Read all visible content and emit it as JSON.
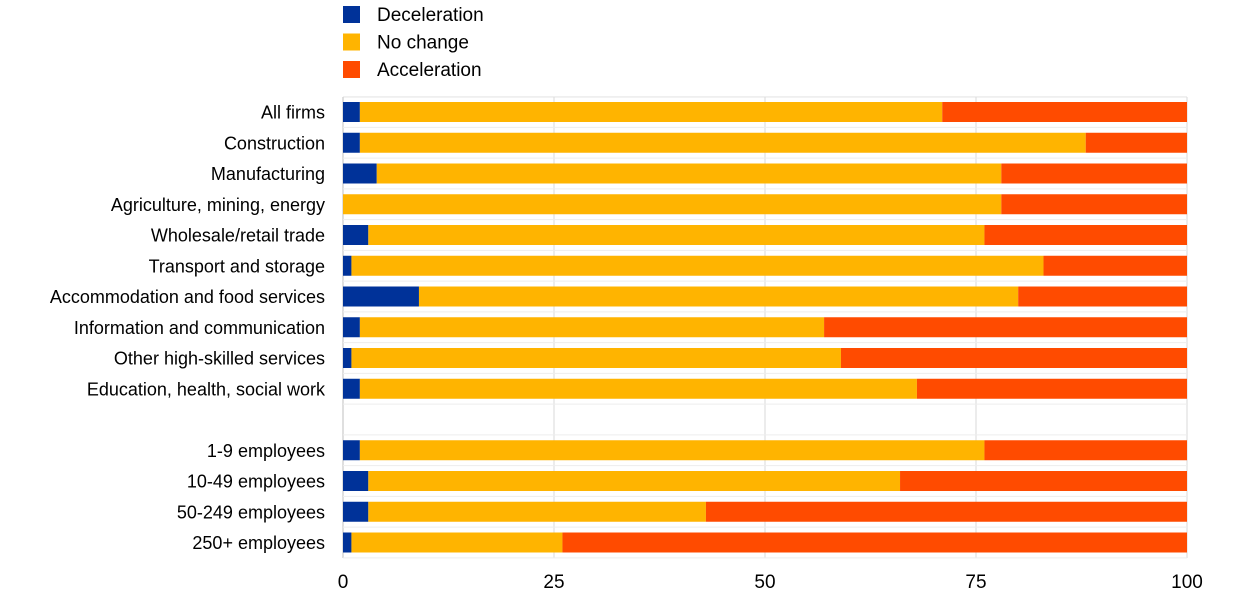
{
  "chart_data": {
    "type": "bar",
    "orientation": "horizontal",
    "stacked": true,
    "title": "",
    "xlabel": "",
    "ylabel": "",
    "xlim": [
      0,
      100
    ],
    "xticks": [
      "0",
      "25",
      "50",
      "75",
      "100"
    ],
    "grid": true,
    "legend_position": "top-left",
    "categories": [
      "All firms",
      "Construction",
      "Manufacturing",
      "Agriculture, mining, energy",
      "Wholesale/retail trade",
      "Transport and storage",
      "Accommodation and food services",
      "Information and communication",
      "Other high-skilled services",
      "Education, health, social work",
      "",
      "1-9 employees",
      "10-49 employees",
      "50-249 employees",
      "250+ employees"
    ],
    "series": [
      {
        "name": "Deceleration",
        "color": "#003299",
        "values": [
          2,
          2,
          4,
          0,
          3,
          1,
          9,
          2,
          1,
          2,
          null,
          2,
          3,
          3,
          1
        ]
      },
      {
        "name": "No change",
        "color": "#FFB400",
        "values": [
          69,
          86,
          74,
          78,
          73,
          82,
          71,
          55,
          58,
          66,
          null,
          74,
          63,
          40,
          25
        ]
      },
      {
        "name": "Acceleration",
        "color": "#FF4B00",
        "values": [
          29,
          12,
          22,
          22,
          24,
          17,
          20,
          43,
          41,
          32,
          null,
          24,
          34,
          57,
          74
        ]
      }
    ]
  }
}
